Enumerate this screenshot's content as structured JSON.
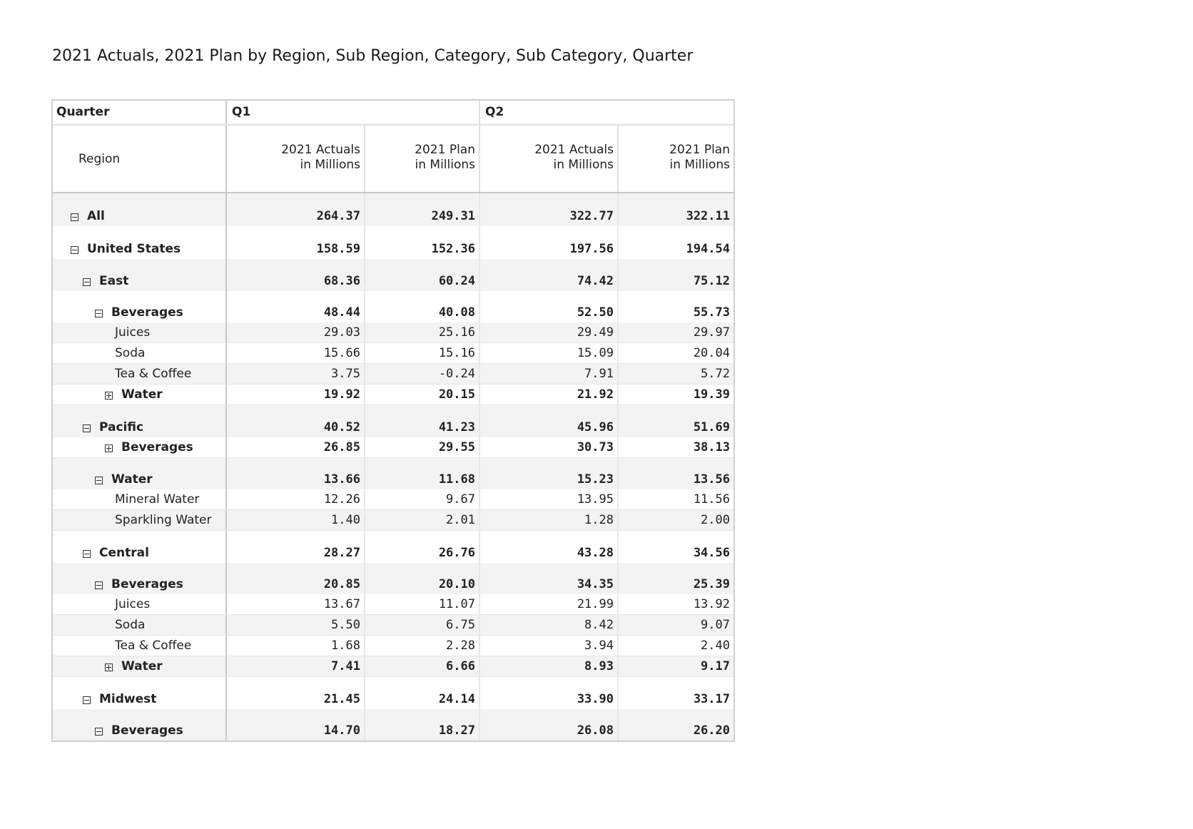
{
  "title": "2021 Actuals, 2021 Plan by Region, Sub Region, Category, Sub Category, Quarter",
  "header": {
    "quarter_label": "Quarter",
    "region_label": "Region",
    "quarters": [
      "Q1",
      "Q2"
    ],
    "measure_actuals": "2021 Actuals\nin Millions",
    "measure_plan": "2021 Plan\nin Millions"
  },
  "rows": [
    {
      "label": "All",
      "level": 0,
      "toggle": "minus",
      "bold": true,
      "shade": true,
      "height": 46,
      "values": [
        "264.37",
        "249.31",
        "322.77",
        "322.11"
      ]
    },
    {
      "label": "United States",
      "level": 0,
      "toggle": "minus",
      "bold": true,
      "shade": false,
      "height": 46,
      "values": [
        "158.59",
        "152.36",
        "197.56",
        "194.54"
      ]
    },
    {
      "label": "East",
      "level": 1,
      "toggle": "minus",
      "bold": true,
      "shade": true,
      "height": 45,
      "values": [
        "68.36",
        "60.24",
        "74.42",
        "75.12"
      ]
    },
    {
      "label": "Beverages",
      "level": 2,
      "toggle": "minus",
      "bold": true,
      "shade": false,
      "height": 44,
      "values": [
        "48.44",
        "40.08",
        "52.50",
        "55.73"
      ]
    },
    {
      "label": "Juices",
      "level": 4,
      "toggle": "",
      "bold": false,
      "shade": true,
      "height": 29,
      "values": [
        "29.03",
        "25.16",
        "29.49",
        "29.97"
      ]
    },
    {
      "label": "Soda",
      "level": 4,
      "toggle": "",
      "bold": false,
      "shade": false,
      "height": 29,
      "values": [
        "15.66",
        "15.16",
        "15.09",
        "20.04"
      ]
    },
    {
      "label": "Tea & Coffee",
      "level": 4,
      "toggle": "",
      "bold": false,
      "shade": true,
      "height": 29,
      "values": [
        "3.75",
        "-0.24",
        "7.91",
        "5.72"
      ]
    },
    {
      "label": "Water",
      "level": 3,
      "toggle": "plus",
      "bold": true,
      "shade": false,
      "height": 29,
      "values": [
        "19.92",
        "20.15",
        "21.92",
        "19.39"
      ]
    },
    {
      "label": "Pacific",
      "level": 1,
      "toggle": "minus",
      "bold": true,
      "shade": true,
      "height": 45,
      "values": [
        "40.52",
        "41.23",
        "45.96",
        "51.69"
      ]
    },
    {
      "label": "Beverages",
      "level": 3,
      "toggle": "plus",
      "bold": true,
      "shade": false,
      "height": 29,
      "values": [
        "26.85",
        "29.55",
        "30.73",
        "38.13"
      ]
    },
    {
      "label": "Water",
      "level": 2,
      "toggle": "minus",
      "bold": true,
      "shade": true,
      "height": 44,
      "values": [
        "13.66",
        "11.68",
        "15.23",
        "13.56"
      ]
    },
    {
      "label": "Mineral Water",
      "level": 4,
      "toggle": "",
      "bold": false,
      "shade": false,
      "height": 29,
      "values": [
        "12.26",
        "9.67",
        "13.95",
        "11.56"
      ]
    },
    {
      "label": "Sparkling Water",
      "level": 4,
      "toggle": "",
      "bold": false,
      "shade": true,
      "height": 29,
      "values": [
        "1.40",
        "2.01",
        "1.28",
        "2.00"
      ]
    },
    {
      "label": "Central",
      "level": 1,
      "toggle": "minus",
      "bold": true,
      "shade": false,
      "height": 45,
      "values": [
        "28.27",
        "26.76",
        "43.28",
        "34.56"
      ]
    },
    {
      "label": "Beverages",
      "level": 2,
      "toggle": "minus",
      "bold": true,
      "shade": true,
      "height": 44,
      "values": [
        "20.85",
        "20.10",
        "34.35",
        "25.39"
      ]
    },
    {
      "label": "Juices",
      "level": 4,
      "toggle": "",
      "bold": false,
      "shade": false,
      "height": 29,
      "values": [
        "13.67",
        "11.07",
        "21.99",
        "13.92"
      ]
    },
    {
      "label": "Soda",
      "level": 4,
      "toggle": "",
      "bold": false,
      "shade": true,
      "height": 29,
      "values": [
        "5.50",
        "6.75",
        "8.42",
        "9.07"
      ]
    },
    {
      "label": "Tea & Coffee",
      "level": 4,
      "toggle": "",
      "bold": false,
      "shade": false,
      "height": 29,
      "values": [
        "1.68",
        "2.28",
        "3.94",
        "2.40"
      ]
    },
    {
      "label": "Water",
      "level": 3,
      "toggle": "plus",
      "bold": true,
      "shade": true,
      "height": 29,
      "values": [
        "7.41",
        "6.66",
        "8.93",
        "9.17"
      ]
    },
    {
      "label": "Midwest",
      "level": 1,
      "toggle": "minus",
      "bold": true,
      "shade": false,
      "height": 45,
      "values": [
        "21.45",
        "24.14",
        "33.90",
        "33.17"
      ]
    },
    {
      "label": "Beverages",
      "level": 2,
      "toggle": "minus",
      "bold": true,
      "shade": true,
      "height": 44,
      "values": [
        "14.70",
        "18.27",
        "26.08",
        "26.20"
      ]
    }
  ]
}
